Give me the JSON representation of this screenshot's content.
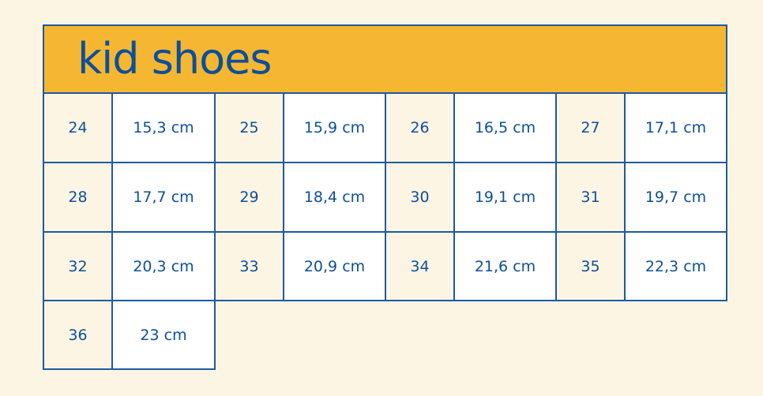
{
  "title": "kid shoes",
  "colors": {
    "background": "#fdf5e4",
    "header": "#f5b731",
    "text": "#0d4f9a",
    "border": "#1d5aa0",
    "cell": "#ffffff"
  },
  "rows": [
    [
      {
        "size": "24",
        "length": "15,3 cm"
      },
      {
        "size": "25",
        "length": "15,9 cm"
      },
      {
        "size": "26",
        "length": "16,5 cm"
      },
      {
        "size": "27",
        "length": "17,1 cm"
      }
    ],
    [
      {
        "size": "28",
        "length": "17,7 cm"
      },
      {
        "size": "29",
        "length": "18,4 cm"
      },
      {
        "size": "30",
        "length": "19,1 cm"
      },
      {
        "size": "31",
        "length": "19,7 cm"
      }
    ],
    [
      {
        "size": "32",
        "length": "20,3 cm"
      },
      {
        "size": "33",
        "length": "20,9 cm"
      },
      {
        "size": "34",
        "length": "21,6 cm"
      },
      {
        "size": "35",
        "length": "22,3 cm"
      }
    ],
    [
      {
        "size": "36",
        "length": "23 cm"
      }
    ]
  ]
}
